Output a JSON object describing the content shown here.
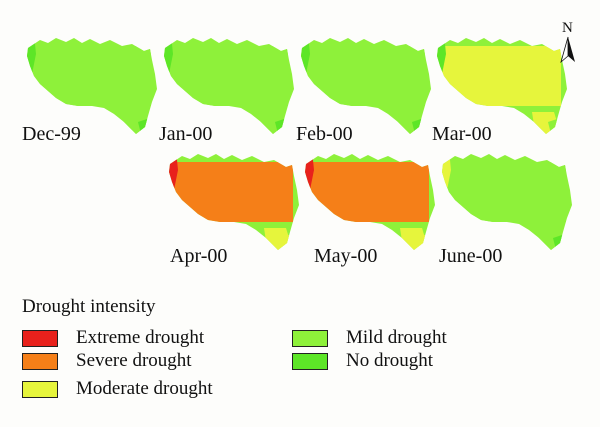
{
  "legend": {
    "title": "Drought intensity",
    "items": [
      {
        "label": "Extreme drought",
        "color": "#e8211c"
      },
      {
        "label": "Severe drought",
        "color": "#f57f18"
      },
      {
        "label": "Moderate drought",
        "color": "#e6f53c"
      },
      {
        "label": "Mild drought",
        "color": "#8ef13a"
      },
      {
        "label": "No drought",
        "color": "#5de627"
      }
    ]
  },
  "north_arrow": {
    "letter": "N"
  },
  "maps": [
    {
      "label": "Dec-99",
      "dominant": "Mild drought",
      "colors": {
        "edge": "#5de627",
        "base": "#8ef13a",
        "body": "#8ef13a",
        "tip": "#8ef13a",
        "notch": "#5de627"
      }
    },
    {
      "label": "Jan-00",
      "dominant": "Mild drought",
      "colors": {
        "edge": "#5de627",
        "base": "#8ef13a",
        "body": "#8ef13a",
        "tip": "#8ef13a",
        "notch": "#5de627"
      }
    },
    {
      "label": "Feb-00",
      "dominant": "Mild drought",
      "colors": {
        "edge": "#5de627",
        "base": "#8ef13a",
        "body": "#8ef13a",
        "tip": "#8ef13a",
        "notch": "#5de627"
      }
    },
    {
      "label": "Mar-00",
      "dominant": "Moderate drought",
      "colors": {
        "edge": "#5de627",
        "base": "#8ef13a",
        "body": "#e6f53c",
        "tip": "#e6f53c",
        "notch": "#8ef13a"
      }
    },
    {
      "label": "Apr-00",
      "dominant": "Severe drought",
      "colors": {
        "edge": "#e8211c",
        "base": "#8ef13a",
        "body": "#f57f18",
        "tip": "#e6f53c",
        "notch": "#e6f53c"
      }
    },
    {
      "label": "May-00",
      "dominant": "Severe drought",
      "colors": {
        "edge": "#e8211c",
        "base": "#8ef13a",
        "body": "#f57f18",
        "tip": "#e6f53c",
        "notch": "#e6f53c"
      }
    },
    {
      "label": "June-00",
      "dominant": "Mild drought",
      "colors": {
        "edge": "#e6f53c",
        "base": "#8ef13a",
        "body": "#8ef13a",
        "tip": "#8ef13a",
        "notch": "#5de627"
      }
    }
  ]
}
